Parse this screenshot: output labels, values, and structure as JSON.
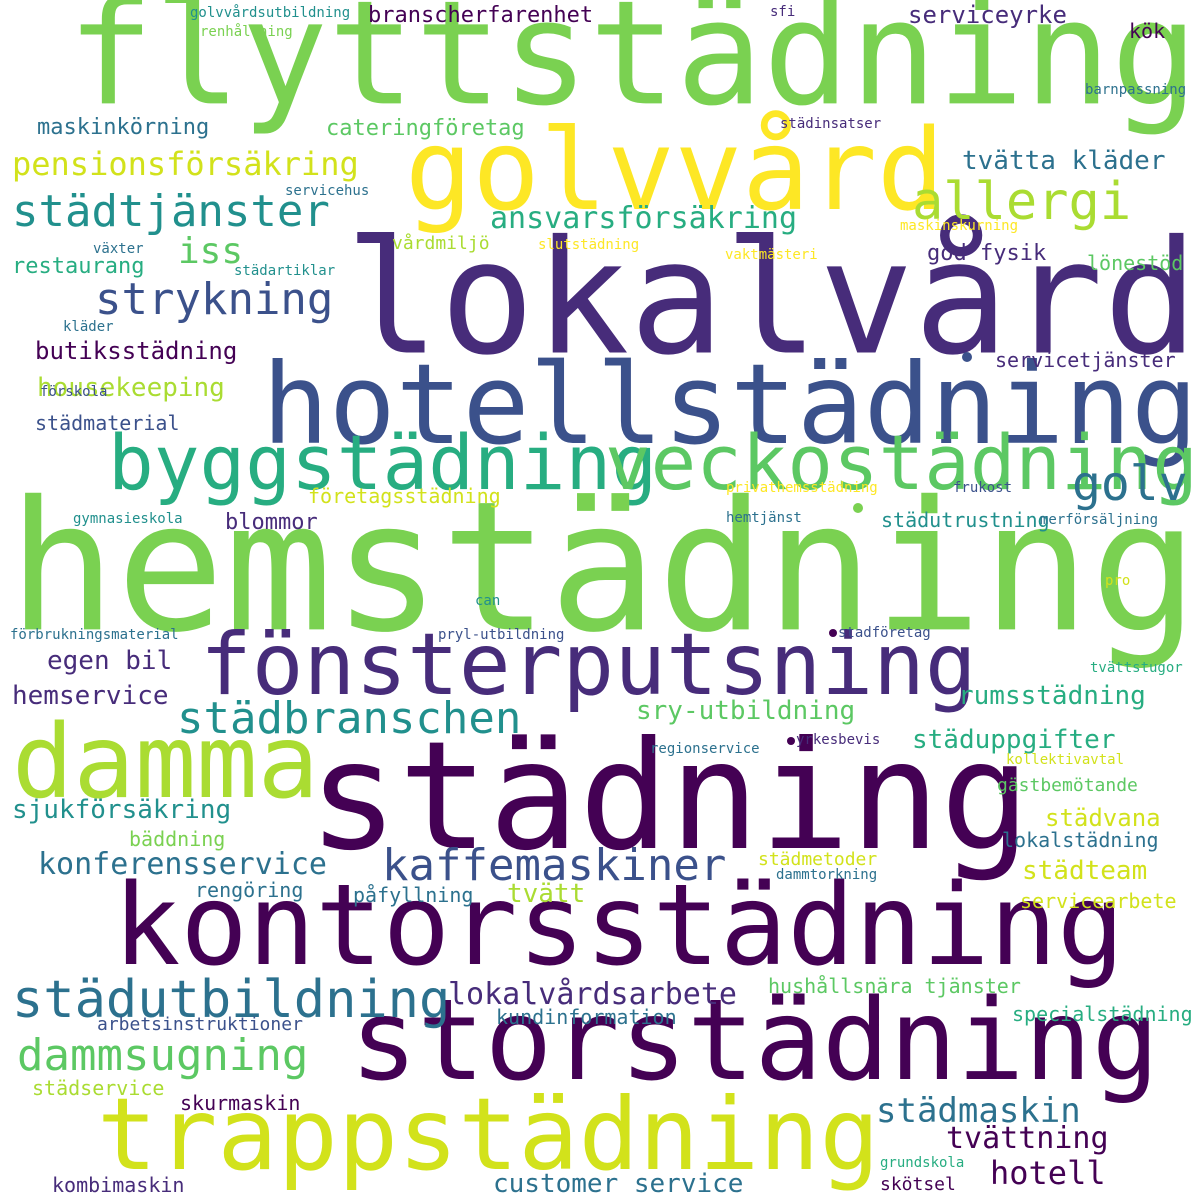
{
  "palette": {
    "background": "#ffffff",
    "c0": "#440154",
    "c1": "#472c7a",
    "c2": "#3b518b",
    "c3": "#2c718e",
    "c4": "#21908d",
    "c5": "#27ad81",
    "c6": "#5cc863",
    "c7": "#7ad151",
    "c8": "#aadc32",
    "c9": "#d2e21b",
    "c10": "#fde725"
  },
  "words": [
    "flyttstädning",
    "golvvård",
    "lokalvård",
    "hotellstädning",
    "byggstädning",
    "veckostädning",
    "hemstädning",
    "fönsterputsning",
    "städning",
    "damma",
    "kontorsstädning",
    "storstädning",
    "trappstädning",
    "städtjänster",
    "strykning",
    "allergi",
    "pensionsförsäkring",
    "ansvarsförsäkring",
    "iss",
    "golv",
    "städbranschen",
    "kaffemaskiner",
    "städutbildning",
    "dammsugning",
    "konferensservice",
    "lokalvårdsarbete",
    "städmaskin",
    "tvättning",
    "hotell",
    "customer service",
    "branscherfarenhet",
    "serviceyrke",
    "kök",
    "maskinkörning",
    "cateringföretag",
    "tvätta kläder",
    "restaurang",
    "god fysik",
    "lönestöd",
    "butiksstädning",
    "servicetjänster",
    "housekeeping",
    "städmaterial",
    "företagsstädning",
    "blommor",
    "städutrustning",
    "egen bil",
    "hemservice",
    "rumsstädning",
    "sry-utbildning",
    "städuppgifter",
    "sjukförsäkring",
    "gästbemötande",
    "städvana",
    "lokalstädning",
    "städteam",
    "servicearbete",
    "bäddning",
    "rengöring",
    "påfyllning",
    "tvätt",
    "städmetoder",
    "hushållsnära tjänster",
    "arbetsinstruktioner",
    "kundinformation",
    "specialstädning",
    "städservice",
    "skurmaskin",
    "kombimaskin",
    "skötsel",
    "grundskola",
    "golvvårdsutbildning",
    "renhållning",
    "sfi",
    "barnpassning",
    "städinsatser",
    "servicehus",
    "maskinskurning",
    "växter",
    "vårdmiljö",
    "slutstädning",
    "vaktmästeri",
    "städartiklar",
    "kläder",
    "förskola",
    "privathemsstädning",
    "frukost",
    "gymnasieskola",
    "hemtjänst",
    "merförsäljning",
    "pro",
    "can",
    "förbrukningsmaterial",
    "pryl-utbildning",
    "stadföretag",
    "tvättstugor",
    "regionservice",
    "yrkesbevis",
    "kollektivavtal",
    "dammtorkning"
  ]
}
